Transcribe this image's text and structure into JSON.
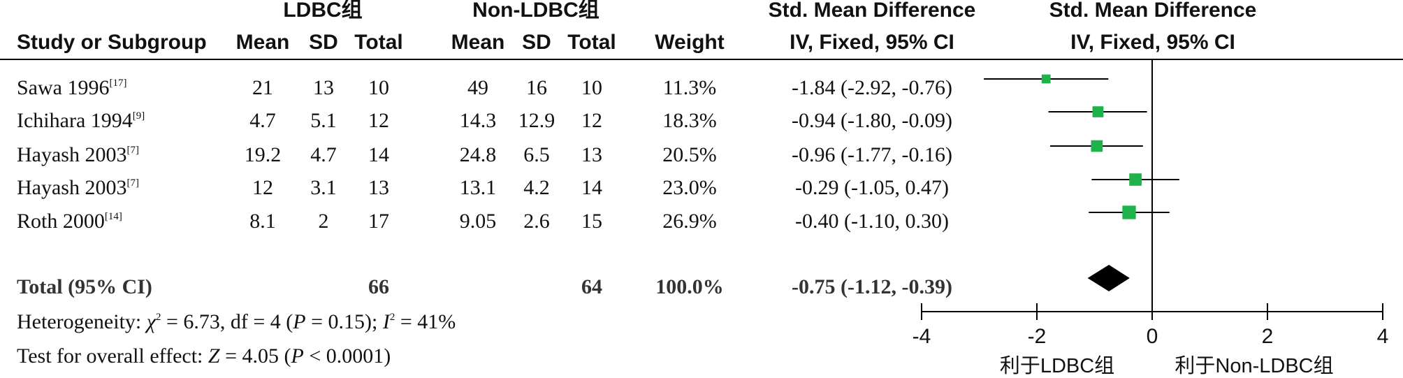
{
  "header": {
    "group1": "LDBC组",
    "group2": "Non-LDBC组",
    "smd_top1": "Std. Mean Difference",
    "smd_top2": "Std. Mean Difference",
    "study_col": "Study or Subgroup",
    "mean1": "Mean",
    "sd1": "SD",
    "total1": "Total",
    "mean2": "Mean",
    "sd2": "SD",
    "total2": "Total",
    "weight": "Weight",
    "ci_col": "IV, Fixed, 95% CI",
    "plot_col": "IV, Fixed, 95% CI"
  },
  "studies": [
    {
      "name": "Sawa 1996",
      "ref": "[17]",
      "mean1": "21",
      "sd1": "13",
      "n1": "10",
      "mean2": "49",
      "sd2": "16",
      "n2": "10",
      "weight": "11.3%",
      "ci": "-1.84 (-2.92, -0.76)"
    },
    {
      "name": "Ichihara 1994",
      "ref": "[9]",
      "mean1": "4.7",
      "sd1": "5.1",
      "n1": "12",
      "mean2": "14.3",
      "sd2": "12.9",
      "n2": "12",
      "weight": "18.3%",
      "ci": "-0.94 (-1.80, -0.09)"
    },
    {
      "name": "Hayash 2003",
      "ref": "[7]",
      "mean1": "19.2",
      "sd1": "4.7",
      "n1": "14",
      "mean2": "24.8",
      "sd2": "6.5",
      "n2": "13",
      "weight": "20.5%",
      "ci": "-0.96 (-1.77, -0.16)"
    },
    {
      "name": "Hayash 2003",
      "ref": "[7]",
      "mean1": "12",
      "sd1": "3.1",
      "n1": "13",
      "mean2": "13.1",
      "sd2": "4.2",
      "n2": "14",
      "weight": "23.0%",
      "ci": "-0.29 (-1.05, 0.47)"
    },
    {
      "name": "Roth 2000",
      "ref": "[14]",
      "mean1": "8.1",
      "sd1": "2",
      "n1": "17",
      "mean2": "9.05",
      "sd2": "2.6",
      "n2": "15",
      "weight": "26.9%",
      "ci": "-0.40 (-1.10, 0.30)"
    }
  ],
  "total": {
    "label": "Total (95% CI)",
    "n1": "66",
    "n2": "64",
    "weight": "100.0%",
    "ci": "-0.75 (-1.12, -0.39)"
  },
  "footer": {
    "heterogeneity_prefix": "Heterogeneity: ",
    "chi": "χ",
    "heterogeneity_mid": " = 6.73, df = 4 (",
    "p1": "P",
    "heterogeneity_mid2": " = 0.15); ",
    "i": "I",
    "heterogeneity_end": " = 41%",
    "overall_prefix": "Test for overall effect: ",
    "z": "Z",
    "overall_mid": " = 4.05 (",
    "p2": "P",
    "overall_end": " < 0.0001)"
  },
  "axis": {
    "ticks": [
      -4,
      -2,
      0,
      2,
      4
    ],
    "tick_labels": [
      "-4",
      "-2",
      "0",
      "2",
      "4"
    ],
    "left_label": "利于LDBC组",
    "right_label": "利于Non-LDBC组"
  },
  "colors": {
    "marker": "#1db34a",
    "diamond": "#000000",
    "line": "#000000"
  },
  "chart_data": {
    "type": "scatter",
    "subtype": "forest",
    "xlim": [
      -4,
      4
    ],
    "series": [
      {
        "name": "Sawa 1996",
        "est": -1.84,
        "lo": -2.92,
        "hi": -0.76,
        "weight": 11.3
      },
      {
        "name": "Ichihara 1994",
        "est": -0.94,
        "lo": -1.8,
        "hi": -0.09,
        "weight": 18.3
      },
      {
        "name": "Hayash 2003",
        "est": -0.96,
        "lo": -1.77,
        "hi": -0.16,
        "weight": 20.5
      },
      {
        "name": "Hayash 2003",
        "est": -0.29,
        "lo": -1.05,
        "hi": 0.47,
        "weight": 23.0
      },
      {
        "name": "Roth 2000",
        "est": -0.4,
        "lo": -1.1,
        "hi": 0.3,
        "weight": 26.9
      }
    ],
    "pooled": {
      "est": -0.75,
      "lo": -1.12,
      "hi": -0.39
    }
  }
}
